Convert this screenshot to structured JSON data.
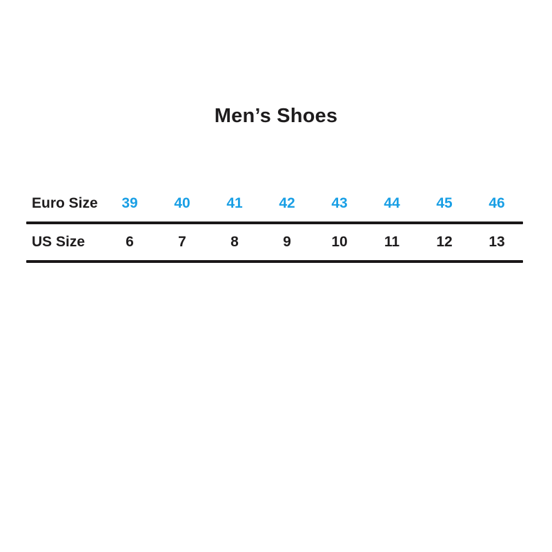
{
  "page": {
    "background": "#ffffff"
  },
  "title": "Men’s Shoes",
  "colors": {
    "title_text": "#1e1c1d",
    "label_text": "#1e1c1d",
    "us_value_text": "#1e1c1d",
    "euro_value_text": "#199fe5",
    "rule": "#1a1718"
  },
  "chart_data": {
    "type": "table",
    "title": "Men’s Shoes",
    "rows": [
      {
        "label": "Euro Size",
        "values": [
          "39",
          "40",
          "41",
          "42",
          "43",
          "44",
          "45",
          "46"
        ]
      },
      {
        "label": "US Size",
        "values": [
          "6",
          "7",
          "8",
          "9",
          "10",
          "11",
          "12",
          "13"
        ]
      }
    ],
    "layout_hints": {
      "value_color_row_0": "#199fe5",
      "value_color_row_1": "#1e1c1d",
      "horizontal_rules": "below each row",
      "grid": "off"
    }
  }
}
